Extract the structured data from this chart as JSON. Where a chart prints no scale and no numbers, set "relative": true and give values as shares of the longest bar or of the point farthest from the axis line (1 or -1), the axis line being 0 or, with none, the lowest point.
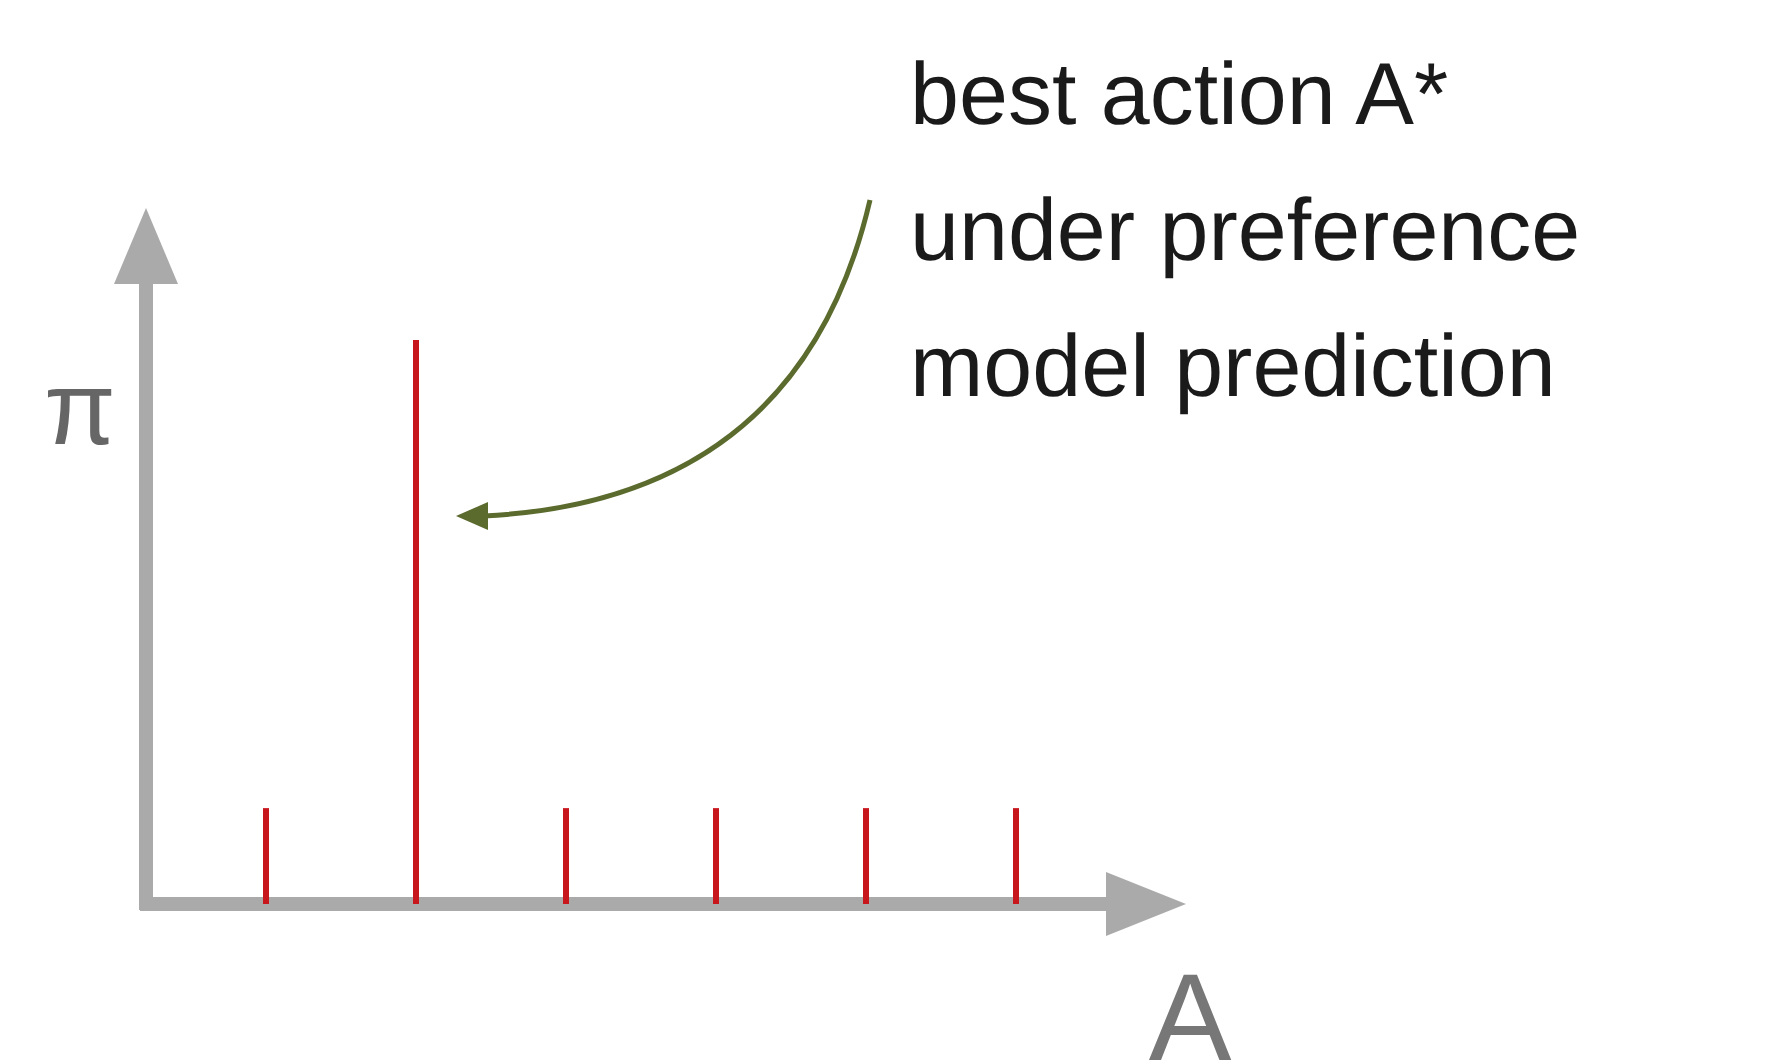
{
  "chart_data": {
    "type": "bar",
    "relative": true,
    "categories": [
      null,
      null,
      null,
      null,
      null,
      null
    ],
    "values": [
      0.17,
      1,
      0.17,
      0.17,
      0.17,
      0.17
    ],
    "color": "#c8161d",
    "xlabel": "A",
    "ylabel": "π",
    "annotations": [
      "best action A*\nunder preference\nmodel prediction"
    ]
  }
}
